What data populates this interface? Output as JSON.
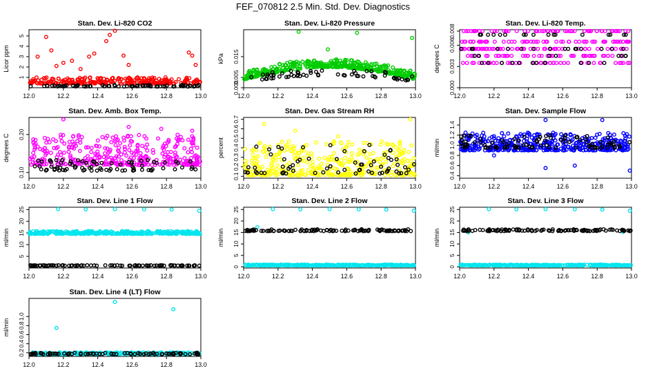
{
  "page": {
    "title": "FEF_070812  2.5 Min. Std. Dev. Diagnostics"
  },
  "chart_data": [
    {
      "type": "scatter",
      "title": "Stan. Dev. Li-820 CO2",
      "ylabel": "Licor ppm",
      "xlim": [
        12.0,
        13.0
      ],
      "ylim": [
        0,
        5.6
      ],
      "xticks": [
        "12.0",
        "12.2",
        "12.4",
        "12.6",
        "12.8",
        "13.0"
      ],
      "yticks": [
        {
          "v": 1,
          "label": "1"
        },
        {
          "v": 2,
          "label": "2"
        },
        {
          "v": 3,
          "label": "3"
        },
        {
          "v": 4,
          "label": "4"
        },
        {
          "v": 5,
          "label": "5"
        }
      ],
      "series": [
        {
          "name": "red",
          "color": "#ff0000",
          "base": 0.4,
          "spread": 0.6,
          "n": 260,
          "outliers": [
            [
              12.05,
              3.0
            ],
            [
              12.1,
              4.9
            ],
            [
              12.13,
              3.6
            ],
            [
              12.16,
              2.1
            ],
            [
              12.2,
              2.4
            ],
            [
              12.25,
              2.6
            ],
            [
              12.3,
              1.8
            ],
            [
              12.38,
              3.3
            ],
            [
              12.45,
              4.5
            ],
            [
              12.47,
              5.1
            ],
            [
              12.5,
              5.5
            ],
            [
              12.52,
              5.6
            ],
            [
              12.55,
              3.1
            ],
            [
              12.58,
              2.2
            ],
            [
              12.93,
              3.4
            ],
            [
              12.95,
              3.1
            ],
            [
              12.97,
              2.2
            ],
            [
              12.35,
              3.0
            ]
          ]
        },
        {
          "name": "black",
          "color": "#000000",
          "base": 0.12,
          "spread": 0.15,
          "n": 70
        }
      ]
    },
    {
      "type": "scatter",
      "title": "Stan. Dev. Li-820 Pressure",
      "ylabel": "kPa",
      "xlim": [
        12.0,
        13.0
      ],
      "ylim": [
        0,
        0.028
      ],
      "xticks": [
        "12.0",
        "12.2",
        "12.4",
        "12.6",
        "12.8",
        "13.0"
      ],
      "yticks": [
        {
          "v": 0,
          "label": "0.000"
        },
        {
          "v": 0.005,
          "label": "0.005"
        },
        {
          "v": 0.015,
          "label": "0.015"
        }
      ],
      "series": [
        {
          "name": "green",
          "color": "#00cc00",
          "base": 0.004,
          "spread": 0.004,
          "arch": 0.006,
          "n": 420,
          "outliers": [
            [
              12.32,
              0.027
            ],
            [
              12.49,
              0.0185
            ],
            [
              12.66,
              0.0265
            ],
            [
              12.98,
              0.024
            ],
            [
              12.33,
              0.0115
            ]
          ]
        },
        {
          "name": "black",
          "color": "#000000",
          "base": 0.003,
          "spread": 0.003,
          "arch": 0.003,
          "n": 60
        }
      ]
    },
    {
      "type": "scatter",
      "title": "Stan. Dev. Li-820 Temp.",
      "ylabel": "degrees C",
      "xlim": [
        12.0,
        13.0
      ],
      "ylim": [
        0,
        0.0082
      ],
      "xticks": [
        "12.0",
        "12.2",
        "12.4",
        "12.6",
        "12.8",
        "13.0"
      ],
      "yticks": [
        {
          "v": 0,
          "label": "0.000"
        },
        {
          "v": 0.003,
          "label": "0.003"
        },
        {
          "v": 0.006,
          "label": "0.006"
        },
        {
          "v": 0.008,
          "label": "0.008"
        }
      ],
      "series": [
        {
          "name": "magenta",
          "color": "#ff00ff",
          "levels": [
            0,
            0.0035,
            0.0045,
            0.0055,
            0.0065,
            0.008
          ],
          "n": 320
        },
        {
          "name": "black",
          "color": "#000000",
          "levels": [
            0,
            0.0035,
            0.0045,
            0.0055,
            0.0075
          ],
          "n": 70
        }
      ]
    },
    {
      "type": "scatter",
      "title": "Stan. Dev. Amb. Box Temp.",
      "ylabel": "degrees C",
      "xlim": [
        12.0,
        13.0
      ],
      "ylim": [
        0.085,
        0.245
      ],
      "xticks": [
        "12.0",
        "12.2",
        "12.4",
        "12.6",
        "12.8",
        "13.0"
      ],
      "yticks": [
        {
          "v": 0.1,
          "label": "0.10"
        },
        {
          "v": 0.2,
          "label": "0.20"
        }
      ],
      "series": [
        {
          "name": "magenta",
          "color": "#ff00ff",
          "base": 0.12,
          "spread": 0.08,
          "n": 360,
          "outliers": [
            [
              12.2,
              0.24
            ],
            [
              12.58,
              0.22
            ],
            [
              12.77,
              0.215
            ],
            [
              12.95,
              0.21
            ]
          ]
        },
        {
          "name": "black",
          "color": "#000000",
          "base": 0.105,
          "spread": 0.03,
          "n": 80
        }
      ]
    },
    {
      "type": "scatter",
      "title": "Stan. Dev. Gas Stream RH",
      "ylabel": "percent",
      "xlim": [
        12.0,
        13.0
      ],
      "ylim": [
        0.08,
        0.72
      ],
      "xticks": [
        "12.0",
        "12.2",
        "12.4",
        "12.6",
        "12.8",
        "13.0"
      ],
      "yticks": [
        {
          "v": 0.1,
          "label": "0.1"
        },
        {
          "v": 0.2,
          "label": "0.2"
        },
        {
          "v": 0.3,
          "label": "0.3"
        },
        {
          "v": 0.4,
          "label": "0.4"
        },
        {
          "v": 0.5,
          "label": "0.5"
        },
        {
          "v": 0.6,
          "label": "0.6"
        },
        {
          "v": 0.7,
          "label": "0.7"
        }
      ],
      "series": [
        {
          "name": "yellow",
          "color": "#ffff00",
          "base": 0.11,
          "spread": 0.36,
          "n": 380,
          "outliers": [
            [
              12.12,
              0.65
            ],
            [
              12.3,
              0.58
            ],
            [
              12.97,
              0.7
            ],
            [
              12.55,
              0.52
            ]
          ]
        },
        {
          "name": "black",
          "color": "#000000",
          "base": 0.13,
          "spread": 0.3,
          "n": 70
        }
      ]
    },
    {
      "type": "scatter",
      "title": "Stan. Dev. Sample Flow",
      "ylabel": "ml/min",
      "xlim": [
        12.0,
        13.0
      ],
      "ylim": [
        0.35,
        1.55
      ],
      "xticks": [
        "12.0",
        "12.2",
        "12.4",
        "12.6",
        "12.8",
        "13.0"
      ],
      "yticks": [
        {
          "v": 0.4,
          "label": "0.4"
        },
        {
          "v": 0.6,
          "label": "0.6"
        },
        {
          "v": 0.8,
          "label": "0.8"
        },
        {
          "v": 1.0,
          "label": "1.0"
        },
        {
          "v": 1.2,
          "label": "1.2"
        },
        {
          "v": 1.4,
          "label": "1.4"
        }
      ],
      "series": [
        {
          "name": "blue",
          "color": "#0000ff",
          "base": 0.9,
          "spread": 0.35,
          "n": 420,
          "outliers": [
            [
              12.5,
              1.5
            ],
            [
              12.83,
              1.5
            ],
            [
              12.2,
              0.8
            ],
            [
              12.5,
              0.55
            ],
            [
              12.67,
              0.6
            ],
            [
              12.99,
              0.5
            ]
          ]
        },
        {
          "name": "black",
          "color": "#000000",
          "base": 0.95,
          "spread": 0.25,
          "n": 90
        }
      ]
    },
    {
      "type": "scatter",
      "title": "Stan. Dev. Line 1 Flow",
      "ylabel": "ml/min",
      "xlim": [
        12.0,
        13.0
      ],
      "ylim": [
        0,
        26
      ],
      "xticks": [
        "12.0",
        "12.2",
        "12.4",
        "12.6",
        "12.8",
        "13.0"
      ],
      "yticks": [
        {
          "v": 5,
          "label": "5"
        },
        {
          "v": 10,
          "label": "10"
        },
        {
          "v": 15,
          "label": "15"
        },
        {
          "v": 20,
          "label": "20"
        },
        {
          "v": 25,
          "label": "25"
        }
      ],
      "series": [
        {
          "name": "cyan",
          "color": "#00e5ee",
          "base": 14.6,
          "spread": 1.2,
          "n": 320,
          "outliers": [
            [
              12.17,
              25.2
            ],
            [
              12.33,
              25.1
            ],
            [
              12.5,
              25.2
            ],
            [
              12.67,
              25.1
            ],
            [
              12.83,
              25.0
            ],
            [
              12.99,
              24.5
            ]
          ]
        },
        {
          "name": "black",
          "color": "#000000",
          "base": 1.0,
          "spread": 0.2,
          "n": 90
        }
      ]
    },
    {
      "type": "scatter",
      "title": "Stan. Dev. Line 2 Flow",
      "ylabel": "ml/min",
      "xlim": [
        12.0,
        13.0
      ],
      "ylim": [
        -0.5,
        26
      ],
      "xticks": [
        "12.0",
        "12.2",
        "12.4",
        "12.6",
        "12.8",
        "13.0"
      ],
      "yticks": [
        {
          "v": 0,
          "label": "0"
        },
        {
          "v": 5,
          "label": "5"
        },
        {
          "v": 10,
          "label": "10"
        },
        {
          "v": 15,
          "label": "15"
        },
        {
          "v": 20,
          "label": "20"
        },
        {
          "v": 25,
          "label": "25"
        }
      ],
      "series": [
        {
          "name": "cyan",
          "color": "#00e5ee",
          "base": 0.6,
          "spread": 0.4,
          "n": 300,
          "outliers": [
            [
              12.17,
              25.2
            ],
            [
              12.33,
              25.1
            ],
            [
              12.5,
              25.2
            ],
            [
              12.67,
              25.1
            ],
            [
              12.83,
              25.0
            ],
            [
              12.99,
              24.5
            ],
            [
              12.08,
              17.3
            ]
          ]
        },
        {
          "name": "black",
          "color": "#000000",
          "base": 15.6,
          "spread": 0.8,
          "n": 110
        }
      ]
    },
    {
      "type": "scatter",
      "title": "Stan. Dev. Line 3 Flow",
      "ylabel": "ml/min",
      "xlim": [
        12.0,
        13.0
      ],
      "ylim": [
        -0.5,
        26
      ],
      "xticks": [
        "12.0",
        "12.2",
        "12.4",
        "12.6",
        "12.8",
        "13.0"
      ],
      "yticks": [
        {
          "v": 0,
          "label": "0"
        },
        {
          "v": 5,
          "label": "5"
        },
        {
          "v": 10,
          "label": "10"
        },
        {
          "v": 15,
          "label": "15"
        },
        {
          "v": 20,
          "label": "20"
        },
        {
          "v": 25,
          "label": "25"
        }
      ],
      "series": [
        {
          "name": "cyan",
          "color": "#00e5ee",
          "base": 0.6,
          "spread": 0.4,
          "n": 300,
          "outliers": [
            [
              12.17,
              25.2
            ],
            [
              12.33,
              25.1
            ],
            [
              12.5,
              25.2
            ],
            [
              12.67,
              25.1
            ],
            [
              12.83,
              25.0
            ],
            [
              12.99,
              24.5
            ],
            [
              12.05,
              15.0
            ],
            [
              12.95,
              15.2
            ]
          ]
        },
        {
          "name": "black",
          "color": "#000000",
          "base": 15.6,
          "spread": 0.8,
          "n": 110
        }
      ]
    },
    {
      "type": "scatter",
      "title": "Stan. Dev. Line 4 (LT) Flow",
      "ylabel": "ml/min",
      "xlim": [
        12.0,
        13.0
      ],
      "ylim": [
        0.12,
        1.4
      ],
      "xticks": [
        "12.0",
        "12.2",
        "12.4",
        "12.6",
        "12.8",
        "13.0"
      ],
      "yticks": [
        {
          "v": 0.2,
          "label": "0.2"
        },
        {
          "v": 0.4,
          "label": "0.4"
        },
        {
          "v": 0.6,
          "label": "0.6"
        },
        {
          "v": 0.8,
          "label": "0.8"
        },
        {
          "v": 1.0,
          "label": "1.0"
        }
      ],
      "series": [
        {
          "name": "cyan",
          "color": "#00e5ee",
          "base": 0.17,
          "spread": 0.04,
          "n": 260,
          "outliers": [
            [
              12.16,
              0.75
            ],
            [
              12.5,
              1.32
            ],
            [
              12.84,
              1.16
            ]
          ]
        },
        {
          "name": "black",
          "color": "#000000",
          "base": 0.17,
          "spread": 0.03,
          "n": 80
        }
      ]
    }
  ]
}
